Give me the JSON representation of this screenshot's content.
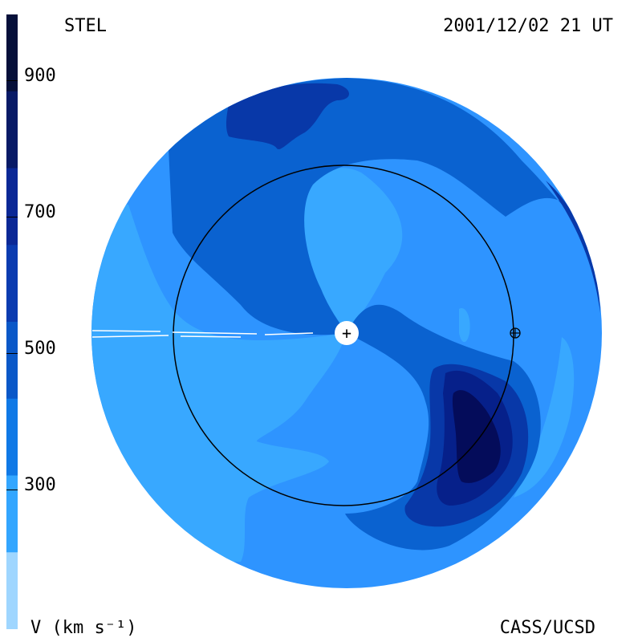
{
  "header": {
    "source": "STEL",
    "timestamp": "2001/12/02 21 UT"
  },
  "footer": {
    "units": "V (km s⁻¹)",
    "credit": "CASS/UCSD"
  },
  "colorbar": {
    "tick_labels": [
      "900",
      "700",
      "500",
      "300"
    ],
    "bands": [
      {
        "color": "#06103a"
      },
      {
        "color": "#081a66"
      },
      {
        "color": "#0b2896"
      },
      {
        "color": "#0b3bb0"
      },
      {
        "color": "#0a58c8"
      },
      {
        "color": "#1079e6"
      },
      {
        "color": "#33a6ff"
      },
      {
        "color": "#9fd6ff"
      }
    ]
  },
  "map": {
    "colors": {
      "outer": "#2e94ff",
      "light": "#38a8ff",
      "mid": "#0a62d0",
      "dark": "#0838a8",
      "darker": "#06208a",
      "darkest": "#040c5a"
    },
    "sun_symbol": "+",
    "earth_symbol": "⊕"
  }
}
